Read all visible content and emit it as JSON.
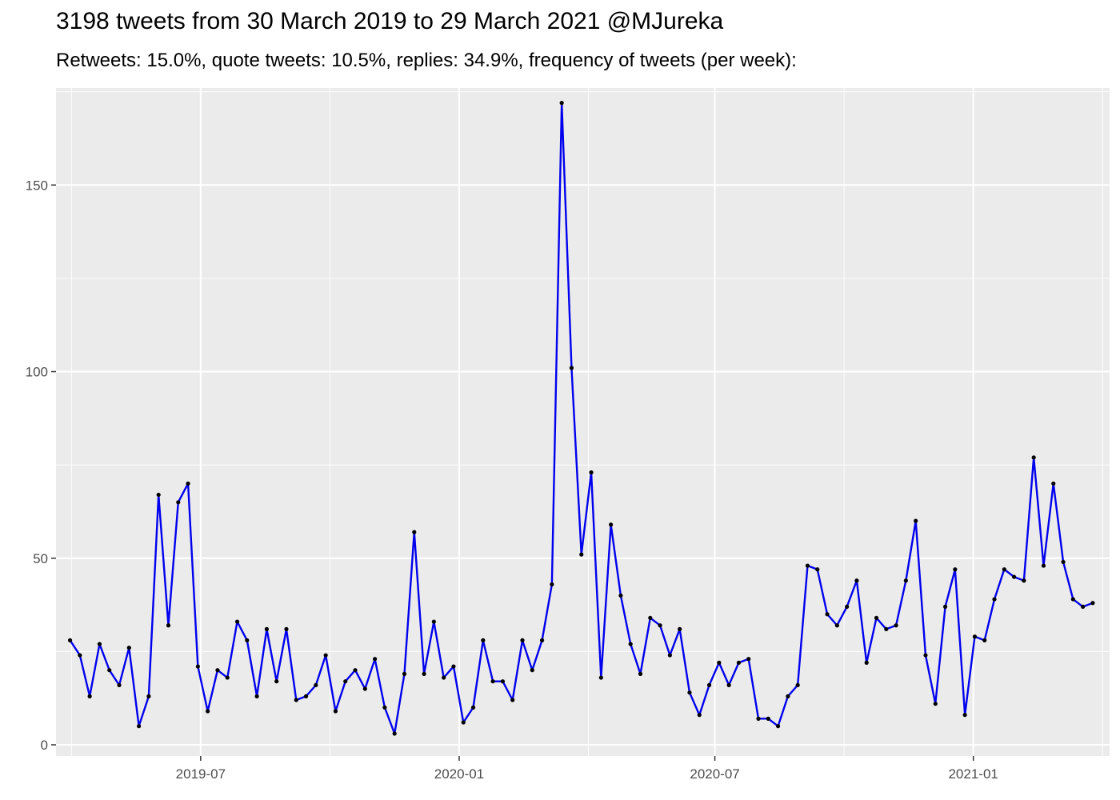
{
  "title": "3198 tweets from 30 March 2019 to 29 March 2021 @MJureka",
  "subtitle": "Retweets: 15.0%, quote tweets: 10.5%, replies: 34.9%, frequency of tweets (per week):",
  "colors": {
    "panel": "#ebebeb",
    "grid": "#ffffff",
    "line": "#0000ee",
    "point": "#000000"
  },
  "chart_data": {
    "type": "line",
    "title": "3198 tweets from 30 March 2019 to 29 March 2021 @MJureka",
    "subtitle": "Retweets: 15.0%, quote tweets: 10.5%, replies: 34.9%, frequency of tweets (per week):",
    "xlabel": "",
    "ylabel": "",
    "xlim": [
      "2019-03-20",
      "2021-04-08"
    ],
    "ylim": [
      -3,
      176
    ],
    "x_ticks": [
      "2019-07-01",
      "2020-01-01",
      "2020-07-01",
      "2021-01-01"
    ],
    "x_tick_labels": [
      "2019-07",
      "2020-01",
      "2020-07",
      "2021-01"
    ],
    "y_ticks": [
      0,
      50,
      100,
      150
    ],
    "y_tick_labels": [
      "0",
      "50",
      "100",
      "150"
    ],
    "grid": true,
    "legend": "none",
    "series": [
      {
        "x": [
          "2019-03-30",
          "2019-04-06",
          "2019-04-13",
          "2019-04-20",
          "2019-04-27",
          "2019-05-04",
          "2019-05-11",
          "2019-05-18",
          "2019-05-25",
          "2019-06-01",
          "2019-06-08",
          "2019-06-15",
          "2019-06-22",
          "2019-06-29",
          "2019-07-06",
          "2019-07-13",
          "2019-07-20",
          "2019-07-27",
          "2019-08-03",
          "2019-08-10",
          "2019-08-17",
          "2019-08-24",
          "2019-08-31",
          "2019-09-07",
          "2019-09-14",
          "2019-09-21",
          "2019-09-28",
          "2019-10-05",
          "2019-10-12",
          "2019-10-19",
          "2019-10-26",
          "2019-11-02",
          "2019-11-09",
          "2019-11-16",
          "2019-11-23",
          "2019-11-30",
          "2019-12-07",
          "2019-12-14",
          "2019-12-21",
          "2019-12-28",
          "2020-01-04",
          "2020-01-11",
          "2020-01-18",
          "2020-01-25",
          "2020-02-01",
          "2020-02-08",
          "2020-02-15",
          "2020-02-22",
          "2020-02-29",
          "2020-03-07",
          "2020-03-14",
          "2020-03-21",
          "2020-03-28",
          "2020-04-04",
          "2020-04-11",
          "2020-04-18",
          "2020-04-25",
          "2020-05-02",
          "2020-05-09",
          "2020-05-16",
          "2020-05-23",
          "2020-05-30",
          "2020-06-06",
          "2020-06-13",
          "2020-06-20",
          "2020-06-27",
          "2020-07-04",
          "2020-07-11",
          "2020-07-18",
          "2020-07-25",
          "2020-08-01",
          "2020-08-08",
          "2020-08-15",
          "2020-08-22",
          "2020-08-29",
          "2020-09-05",
          "2020-09-12",
          "2020-09-19",
          "2020-09-26",
          "2020-10-03",
          "2020-10-10",
          "2020-10-17",
          "2020-10-24",
          "2020-10-31",
          "2020-11-07",
          "2020-11-14",
          "2020-11-21",
          "2020-11-28",
          "2020-12-05",
          "2020-12-12",
          "2020-12-19",
          "2020-12-26",
          "2021-01-02",
          "2021-01-09",
          "2021-01-16",
          "2021-01-23",
          "2021-01-30",
          "2021-02-06",
          "2021-02-13",
          "2021-02-20",
          "2021-02-27",
          "2021-03-06",
          "2021-03-13",
          "2021-03-20",
          "2021-03-27"
        ],
        "values": [
          28,
          24,
          13,
          27,
          20,
          16,
          26,
          5,
          13,
          67,
          32,
          65,
          70,
          21,
          9,
          20,
          18,
          33,
          28,
          13,
          31,
          17,
          31,
          12,
          13,
          16,
          24,
          9,
          17,
          20,
          15,
          23,
          10,
          3,
          19,
          57,
          19,
          33,
          18,
          21,
          6,
          10,
          28,
          17,
          17,
          12,
          28,
          20,
          28,
          43,
          172,
          101,
          51,
          73,
          18,
          59,
          40,
          27,
          19,
          34,
          32,
          24,
          31,
          14,
          8,
          16,
          22,
          16,
          22,
          23,
          7,
          7,
          5,
          13,
          16,
          48,
          47,
          35,
          32,
          37,
          44,
          22,
          34,
          31,
          32,
          44,
          60,
          24,
          11,
          37,
          47,
          8,
          29,
          28,
          39,
          47,
          45,
          44,
          77,
          48,
          70,
          49,
          39,
          37,
          38
        ]
      }
    ]
  }
}
